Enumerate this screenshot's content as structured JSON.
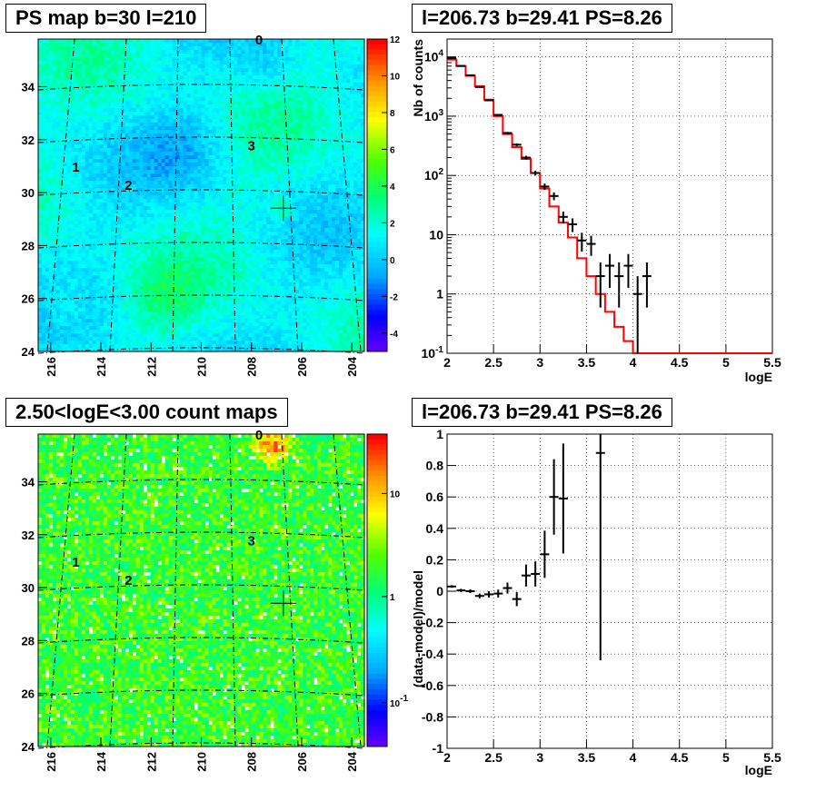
{
  "panels": {
    "map_top": {
      "title": "PS map b=30 l=210"
    },
    "spectrum": {
      "title": "l=206.73 b=29.41 PS=8.26"
    },
    "map_bottom": {
      "title": "2.50<logE<3.00 count maps"
    },
    "residual": {
      "title": "l=206.73 b=29.41 PS=8.26"
    }
  },
  "colors": {
    "model_line": "#ff0000",
    "data_points": "#000000",
    "cross_marker": "#000000"
  },
  "chart_data": [
    {
      "type": "heatmap",
      "id": "ps_map",
      "title": "PS map b=30 l=210",
      "xticks": [
        "216",
        "214",
        "212",
        "210",
        "208",
        "206",
        "204"
      ],
      "yticks": [
        "24",
        "26",
        "28",
        "30",
        "32",
        "34"
      ],
      "xlim": [
        216.5,
        203.5
      ],
      "ylim": [
        24,
        35.8
      ],
      "colorbar_ticks": [
        "12",
        "10",
        "8",
        "6",
        "4",
        "2",
        "0",
        "-2",
        "-4"
      ],
      "colorbar_range": [
        -5,
        12
      ],
      "grid_labels": [
        {
          "text": "0",
          "l": 207.7,
          "b": 35.6
        },
        {
          "text": "1",
          "l": 215.0,
          "b": 30.8
        },
        {
          "text": "2",
          "l": 212.9,
          "b": 30.1
        },
        {
          "text": "3",
          "l": 208.0,
          "b": 31.6
        }
      ],
      "cross": {
        "l": 206.73,
        "b": 29.41
      }
    },
    {
      "type": "line",
      "id": "spectrum",
      "title": "l=206.73 b=29.41 PS=8.26",
      "xlabel": "logE",
      "ylabel": "Nb of counts",
      "yscale": "log",
      "xlim": [
        2,
        5.5
      ],
      "ylim": [
        0.1,
        20000
      ],
      "xticks": [
        "2",
        "2.5",
        "3",
        "3.5",
        "4",
        "4.5",
        "5",
        "5.5"
      ],
      "yticks": [
        "10^4",
        "10^3",
        "10^2",
        "10",
        "1",
        "10^-1"
      ],
      "grid": true,
      "series": [
        {
          "kind": "step",
          "bin_edges": [
            2.0,
            2.1,
            2.2,
            2.3,
            2.4,
            2.5,
            2.6,
            2.7,
            2.8,
            2.9,
            3.0,
            3.1,
            3.2,
            3.3,
            3.4,
            3.5,
            3.6,
            3.7,
            3.8,
            3.9,
            4.0,
            5.5
          ],
          "values": [
            9000,
            7000,
            4800,
            3200,
            1900,
            1000,
            500,
            300,
            190,
            110,
            60,
            30,
            16,
            9,
            4,
            2,
            1,
            0.5,
            0.28,
            0.16,
            0.1
          ]
        },
        {
          "kind": "points",
          "x": [
            2.05,
            2.15,
            2.25,
            2.35,
            2.45,
            2.55,
            2.65,
            2.75,
            2.85,
            2.95,
            3.05,
            3.15,
            3.25,
            3.35,
            3.45,
            3.55,
            3.65,
            3.75,
            3.85,
            3.95,
            4.05,
            4.15
          ],
          "y": [
            9500,
            7050,
            4900,
            3100,
            1850,
            1050,
            520,
            330,
            200,
            110,
            65,
            45,
            20,
            15,
            8,
            7,
            2,
            3,
            2,
            3,
            1,
            2
          ],
          "yerr_lo": [
            95,
            84,
            70,
            56,
            43,
            32,
            23,
            18,
            14,
            10.5,
            8,
            6.7,
            4.5,
            3.9,
            2.8,
            2.6,
            1.41,
            1.73,
            1.41,
            1.73,
            1,
            1.41
          ],
          "yerr_hi": [
            95,
            84,
            70,
            56,
            43,
            32,
            23,
            18,
            14,
            10.5,
            8,
            6.7,
            4.5,
            3.9,
            2.8,
            2.6,
            1.41,
            1.73,
            1.41,
            1.73,
            1,
            1.41
          ]
        }
      ]
    },
    {
      "type": "heatmap",
      "id": "count_map",
      "title": "2.50<logE<3.00 count maps",
      "xticks": [
        "216",
        "214",
        "212",
        "210",
        "208",
        "206",
        "204"
      ],
      "yticks": [
        "24",
        "26",
        "28",
        "30",
        "32",
        "34"
      ],
      "xlim": [
        216.5,
        203.5
      ],
      "ylim": [
        24,
        35.8
      ],
      "colorbar_ticks": [
        "10",
        "1",
        "10^-1"
      ],
      "colorbar_scale": "log",
      "grid_labels": [
        {
          "text": "0",
          "l": 207.7,
          "b": 35.6
        },
        {
          "text": "1",
          "l": 215.0,
          "b": 30.8
        },
        {
          "text": "2",
          "l": 212.9,
          "b": 30.1
        },
        {
          "text": "3",
          "l": 208.0,
          "b": 31.6
        }
      ],
      "cross": {
        "l": 206.73,
        "b": 29.41
      }
    },
    {
      "type": "scatter",
      "id": "residual",
      "title": "l=206.73 b=29.41 PS=8.26",
      "xlabel": "logE",
      "ylabel": "(data-model)/model",
      "xlim": [
        2,
        5.5
      ],
      "ylim": [
        -1,
        1
      ],
      "xticks": [
        "2",
        "2.5",
        "3",
        "3.5",
        "4",
        "4.5",
        "5",
        "5.5"
      ],
      "yticks": [
        "1",
        "0.8",
        "0.6",
        "0.4",
        "0.2",
        "0",
        "-0.2",
        "-0.4",
        "-0.6",
        "-0.8",
        "-1"
      ],
      "grid": true,
      "x": [
        2.05,
        2.15,
        2.25,
        2.35,
        2.45,
        2.55,
        2.65,
        2.75,
        2.85,
        2.95,
        3.05,
        3.15,
        3.25,
        3.65
      ],
      "y": [
        0.03,
        0.005,
        0.0,
        -0.03,
        -0.02,
        -0.015,
        0.02,
        -0.05,
        0.1,
        0.11,
        0.235,
        0.6,
        0.59,
        0.88
      ],
      "yerr": [
        0.008,
        0.01,
        0.012,
        0.015,
        0.02,
        0.025,
        0.035,
        0.045,
        0.07,
        0.08,
        0.15,
        0.24,
        0.35,
        1.32
      ]
    }
  ]
}
